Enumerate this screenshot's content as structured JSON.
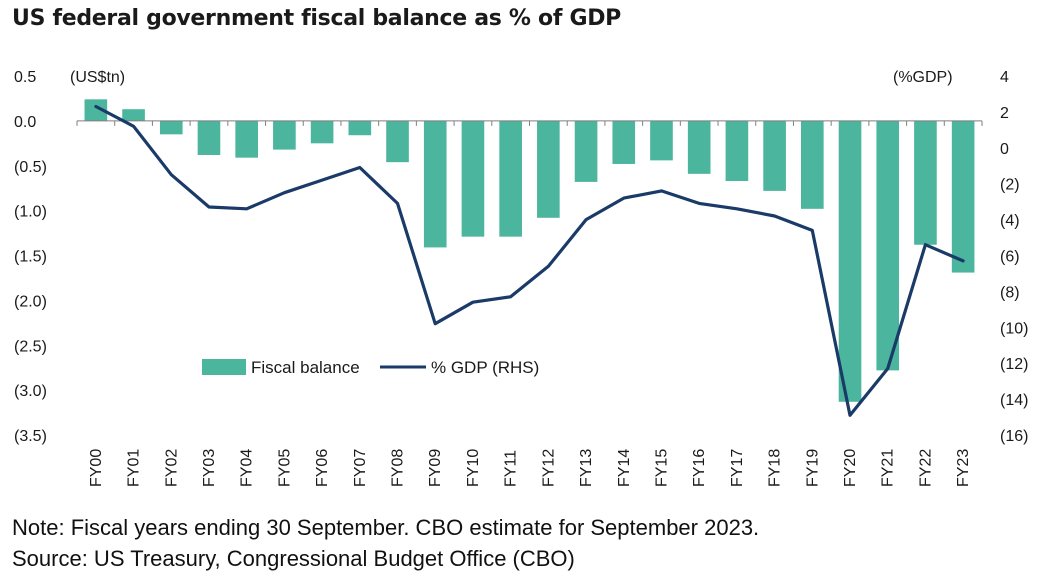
{
  "chart_data": {
    "type": "bar+line",
    "title": "US federal government fiscal balance as % of GDP",
    "left_axis_unit": "(US$tn)",
    "right_axis_unit": "(%GDP)",
    "categories": [
      "FY00",
      "FY01",
      "FY02",
      "FY03",
      "FY04",
      "FY05",
      "FY06",
      "FY07",
      "FY08",
      "FY09",
      "FY10",
      "FY11",
      "FY12",
      "FY13",
      "FY14",
      "FY15",
      "FY16",
      "FY17",
      "FY18",
      "FY19",
      "FY20",
      "FY21",
      "FY22",
      "FY23"
    ],
    "series": [
      {
        "name": "Fiscal balance",
        "type": "bar",
        "axis": "left",
        "color": "#4bb59d",
        "values": [
          0.24,
          0.13,
          -0.15,
          -0.38,
          -0.41,
          -0.32,
          -0.25,
          -0.16,
          -0.46,
          -1.41,
          -1.29,
          -1.29,
          -1.08,
          -0.68,
          -0.48,
          -0.44,
          -0.59,
          -0.67,
          -0.78,
          -0.98,
          -3.13,
          -2.78,
          -1.38,
          -1.69
        ]
      },
      {
        "name": "% GDP (RHS)",
        "type": "line",
        "axis": "right",
        "color": "#1a3a68",
        "values": [
          2.3,
          1.2,
          -1.5,
          -3.3,
          -3.4,
          -2.5,
          -1.8,
          -1.1,
          -3.1,
          -9.8,
          -8.6,
          -8.3,
          -6.6,
          -4.0,
          -2.8,
          -2.4,
          -3.1,
          -3.4,
          -3.8,
          -4.6,
          -14.9,
          -12.3,
          -5.4,
          -6.3
        ]
      }
    ],
    "left_ticks": [
      "0.5",
      "0.0",
      "(0.5)",
      "(1.0)",
      "(1.5)",
      "(2.0)",
      "(2.5)",
      "(3.0)",
      "(3.5)"
    ],
    "right_ticks": [
      "4",
      "2",
      "0",
      "(2)",
      "(4)",
      "(6)",
      "(8)",
      "(10)",
      "(12)",
      "(14)",
      "(16)"
    ],
    "ylim_left": [
      -3.5,
      0.5
    ],
    "ylim_right": [
      -16,
      4
    ],
    "grid": false,
    "legend_position": "bottom-left-center"
  },
  "footnotes": {
    "note": "Note: Fiscal years ending 30 September. CBO estimate for September 2023.",
    "source": "Source: US Treasury, Congressional Budget Office (CBO)"
  }
}
